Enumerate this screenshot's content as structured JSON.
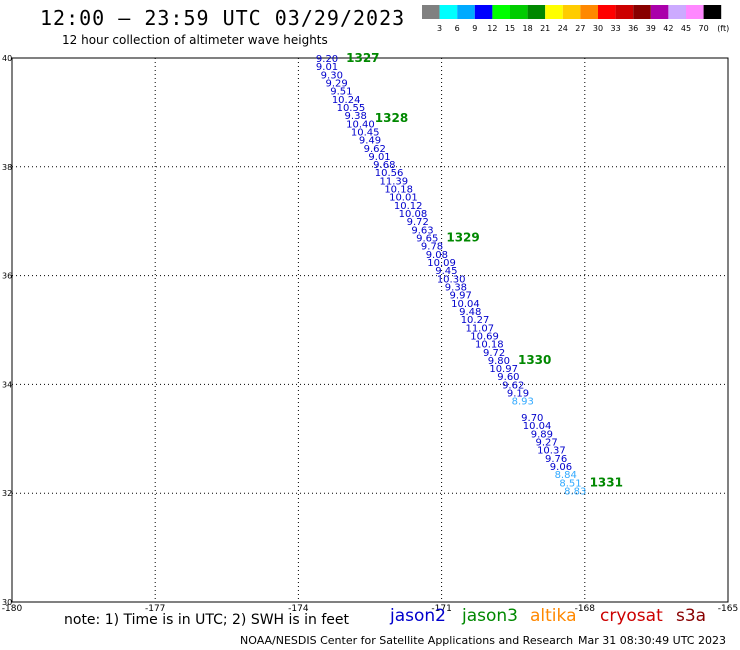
{
  "header": {
    "title": "12:00 – 23:59 UTC 03/29/2023",
    "subtitle": "12 hour collection of altimeter wave heights"
  },
  "color_scale": {
    "labels": [
      "3",
      "6",
      "9",
      "12",
      "15",
      "18",
      "21",
      "24",
      "27",
      "30",
      "33",
      "36",
      "39",
      "42",
      "45",
      "70"
    ],
    "unit": "(ft)",
    "colors": [
      "#808080",
      "#00ffff",
      "#00aaff",
      "#0000ff",
      "#00ff00",
      "#00cc00",
      "#008800",
      "#ffff00",
      "#ffcc00",
      "#ff8800",
      "#ff0000",
      "#cc0000",
      "#880000",
      "#aa00aa",
      "#ccaaff",
      "#ff88ff",
      "#000000"
    ]
  },
  "chart_data": {
    "type": "scatter",
    "xlim": [
      -180,
      -165
    ],
    "ylim": [
      30,
      40
    ],
    "x_ticks": [
      "-180",
      "-177",
      "-174",
      "-171",
      "-168",
      "-165"
    ],
    "y_ticks": [
      "40",
      "38",
      "36",
      "34",
      "32",
      "30"
    ],
    "grid": true,
    "points": [
      {
        "lat": 40.0,
        "lon": -173.4,
        "swh": "9.20",
        "color": "#0000cc"
      },
      {
        "lat": 39.85,
        "lon": -173.4,
        "swh": "9.01",
        "color": "#0000cc"
      },
      {
        "lat": 39.7,
        "lon": -173.3,
        "swh": "9.30",
        "color": "#0000cc"
      },
      {
        "lat": 39.55,
        "lon": -173.2,
        "swh": "9.29",
        "color": "#0000cc"
      },
      {
        "lat": 39.4,
        "lon": -173.1,
        "swh": "9.51",
        "color": "#0000cc"
      },
      {
        "lat": 39.25,
        "lon": -173.0,
        "swh": "10.24",
        "color": "#0000cc"
      },
      {
        "lat": 39.1,
        "lon": -172.9,
        "swh": "10.55",
        "color": "#0000cc"
      },
      {
        "lat": 38.95,
        "lon": -172.8,
        "swh": "9.38",
        "color": "#0000cc"
      },
      {
        "lat": 38.8,
        "lon": -172.7,
        "swh": "10.40",
        "color": "#0000cc"
      },
      {
        "lat": 38.65,
        "lon": -172.6,
        "swh": "10.45",
        "color": "#0000cc"
      },
      {
        "lat": 38.5,
        "lon": -172.5,
        "swh": "9.49",
        "color": "#0000cc"
      },
      {
        "lat": 38.35,
        "lon": -172.4,
        "swh": "9.62",
        "color": "#0000cc"
      },
      {
        "lat": 38.2,
        "lon": -172.3,
        "swh": "9.01",
        "color": "#0000cc"
      },
      {
        "lat": 38.05,
        "lon": -172.2,
        "swh": "9.68",
        "color": "#0000cc"
      },
      {
        "lat": 37.9,
        "lon": -172.1,
        "swh": "10.56",
        "color": "#0000cc"
      },
      {
        "lat": 37.75,
        "lon": -172.0,
        "swh": "11.39",
        "color": "#0000cc"
      },
      {
        "lat": 37.6,
        "lon": -171.9,
        "swh": "10.18",
        "color": "#0000cc"
      },
      {
        "lat": 37.45,
        "lon": -171.8,
        "swh": "10.01",
        "color": "#0000cc"
      },
      {
        "lat": 37.3,
        "lon": -171.7,
        "swh": "10.12",
        "color": "#0000cc"
      },
      {
        "lat": 37.15,
        "lon": -171.6,
        "swh": "10.08",
        "color": "#0000cc"
      },
      {
        "lat": 37.0,
        "lon": -171.5,
        "swh": "9.72",
        "color": "#0000cc"
      },
      {
        "lat": 36.85,
        "lon": -171.4,
        "swh": "9.63",
        "color": "#0000cc"
      },
      {
        "lat": 36.7,
        "lon": -171.3,
        "swh": "9.65",
        "color": "#0000cc"
      },
      {
        "lat": 36.55,
        "lon": -171.2,
        "swh": "9.78",
        "color": "#0000cc"
      },
      {
        "lat": 36.4,
        "lon": -171.1,
        "swh": "9.08",
        "color": "#0000cc"
      },
      {
        "lat": 36.25,
        "lon": -171.0,
        "swh": "10.09",
        "color": "#0000cc"
      },
      {
        "lat": 36.1,
        "lon": -170.9,
        "swh": "9.45",
        "color": "#0000cc"
      },
      {
        "lat": 35.95,
        "lon": -170.8,
        "swh": "10.30",
        "color": "#0000cc"
      },
      {
        "lat": 35.8,
        "lon": -170.7,
        "swh": "9.38",
        "color": "#0000cc"
      },
      {
        "lat": 35.65,
        "lon": -170.6,
        "swh": "9.97",
        "color": "#0000cc"
      },
      {
        "lat": 35.5,
        "lon": -170.5,
        "swh": "10.04",
        "color": "#0000cc"
      },
      {
        "lat": 35.35,
        "lon": -170.4,
        "swh": "9.48",
        "color": "#0000cc"
      },
      {
        "lat": 35.2,
        "lon": -170.3,
        "swh": "10.27",
        "color": "#0000cc"
      },
      {
        "lat": 35.05,
        "lon": -170.2,
        "swh": "11.07",
        "color": "#0000cc"
      },
      {
        "lat": 34.9,
        "lon": -170.1,
        "swh": "10.69",
        "color": "#0000cc"
      },
      {
        "lat": 34.75,
        "lon": -170.0,
        "swh": "10.18",
        "color": "#0000cc"
      },
      {
        "lat": 34.6,
        "lon": -169.9,
        "swh": "9.72",
        "color": "#0000cc"
      },
      {
        "lat": 34.45,
        "lon": -169.8,
        "swh": "9.80",
        "color": "#0000cc"
      },
      {
        "lat": 34.3,
        "lon": -169.7,
        "swh": "10.97",
        "color": "#0000cc"
      },
      {
        "lat": 34.15,
        "lon": -169.6,
        "swh": "9.60",
        "color": "#0000cc"
      },
      {
        "lat": 34.0,
        "lon": -169.5,
        "swh": "9.62",
        "color": "#0000cc"
      },
      {
        "lat": 33.85,
        "lon": -169.4,
        "swh": "9.19",
        "color": "#0000cc"
      },
      {
        "lat": 33.7,
        "lon": -169.3,
        "swh": "8.93",
        "color": "#33aaff"
      },
      {
        "lat": 33.4,
        "lon": -169.1,
        "swh": "9.70",
        "color": "#0000cc"
      },
      {
        "lat": 33.25,
        "lon": -169.0,
        "swh": "10.04",
        "color": "#0000cc"
      },
      {
        "lat": 33.1,
        "lon": -168.9,
        "swh": "9.89",
        "color": "#0000cc"
      },
      {
        "lat": 32.95,
        "lon": -168.8,
        "swh": "9.27",
        "color": "#0000cc"
      },
      {
        "lat": 32.8,
        "lon": -168.7,
        "swh": "10.37",
        "color": "#0000cc"
      },
      {
        "lat": 32.65,
        "lon": -168.6,
        "swh": "9.76",
        "color": "#0000cc"
      },
      {
        "lat": 32.5,
        "lon": -168.5,
        "swh": "9.06",
        "color": "#0000cc"
      },
      {
        "lat": 32.35,
        "lon": -168.4,
        "swh": "8.84",
        "color": "#33aaff"
      },
      {
        "lat": 32.2,
        "lon": -168.3,
        "swh": "8.51",
        "color": "#33aaff"
      },
      {
        "lat": 32.05,
        "lon": -168.2,
        "swh": "8.83",
        "color": "#33aaff"
      }
    ],
    "pass_labels": [
      {
        "lat": 40.0,
        "lon": -173.0,
        "text": "1327"
      },
      {
        "lat": 38.9,
        "lon": -172.4,
        "text": "1328"
      },
      {
        "lat": 36.7,
        "lon": -170.9,
        "text": "1329"
      },
      {
        "lat": 34.45,
        "lon": -169.4,
        "text": "1330"
      },
      {
        "lat": 32.2,
        "lon": -167.9,
        "text": "1331"
      }
    ],
    "pass_label_color": "#008800"
  },
  "footer": {
    "note": "note: 1) Time is in UTC; 2) SWH is in feet",
    "credit": "NOAA/NESDIS Center for Satellite Applications and Research",
    "timestamp": "Mar 31 08:30:49 UTC 2023"
  },
  "missions": [
    {
      "label": "jason2",
      "color": "#0000cc"
    },
    {
      "label": "jason3",
      "color": "#008800"
    },
    {
      "label": "altika",
      "color": "#ff8800"
    },
    {
      "label": "cryosat",
      "color": "#cc0000"
    },
    {
      "label": "s3a",
      "color": "#880000"
    }
  ]
}
